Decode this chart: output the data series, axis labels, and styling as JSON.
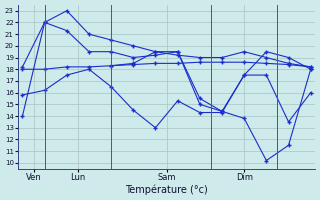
{
  "background_color": "#ceeaea",
  "grid_color": "#b0c8c8",
  "line_color": "#1a2ecc",
  "xlabel": "Température (°c)",
  "ylim": [
    9.5,
    23.5
  ],
  "yticks": [
    10,
    11,
    12,
    13,
    14,
    15,
    16,
    17,
    18,
    19,
    20,
    21,
    22,
    23
  ],
  "xlim": [
    -0.2,
    13.2
  ],
  "vline_positions": [
    1.0,
    4.0,
    8.5,
    11.5
  ],
  "xlabel_ticks": [
    0.5,
    2.5,
    6.5,
    10.0
  ],
  "xlabel_labels": [
    "Ven",
    "Lun",
    "Sam",
    "Dim"
  ],
  "series": [
    {
      "x": [
        0,
        1,
        2,
        3,
        4,
        5,
        6,
        7,
        8,
        9,
        10,
        11,
        12,
        13
      ],
      "y": [
        14.0,
        22.0,
        23.0,
        21.0,
        20.5,
        20.0,
        19.5,
        19.2,
        19.0,
        19.0,
        19.5,
        19.0,
        18.5,
        18.2
      ]
    },
    {
      "x": [
        0,
        1,
        2,
        3,
        4,
        5,
        6,
        7,
        8,
        9,
        10,
        11,
        12,
        13
      ],
      "y": [
        18.0,
        18.0,
        18.2,
        18.2,
        18.3,
        18.4,
        18.5,
        18.5,
        18.6,
        18.6,
        18.6,
        18.5,
        18.4,
        18.2
      ]
    },
    {
      "x": [
        0,
        1,
        2,
        3,
        4,
        5,
        6,
        7,
        8,
        9,
        10,
        11,
        12,
        13
      ],
      "y": [
        15.8,
        16.2,
        17.5,
        18.0,
        16.5,
        14.5,
        13.0,
        15.3,
        14.3,
        14.3,
        17.5,
        17.5,
        13.5,
        16.0
      ]
    },
    {
      "x": [
        0,
        1,
        2,
        3,
        4,
        5,
        6,
        7,
        8,
        9,
        10,
        11,
        12,
        13
      ],
      "y": [
        18.2,
        22.0,
        21.3,
        19.5,
        19.5,
        19.0,
        19.2,
        19.5,
        15.0,
        14.4,
        17.5,
        19.5,
        19.0,
        18.0
      ]
    },
    {
      "x": [
        4,
        5,
        6,
        7,
        8,
        9,
        10,
        11,
        12,
        13
      ],
      "y": [
        18.3,
        18.5,
        19.5,
        19.5,
        15.5,
        14.4,
        13.8,
        10.2,
        11.5,
        18.0
      ]
    }
  ]
}
